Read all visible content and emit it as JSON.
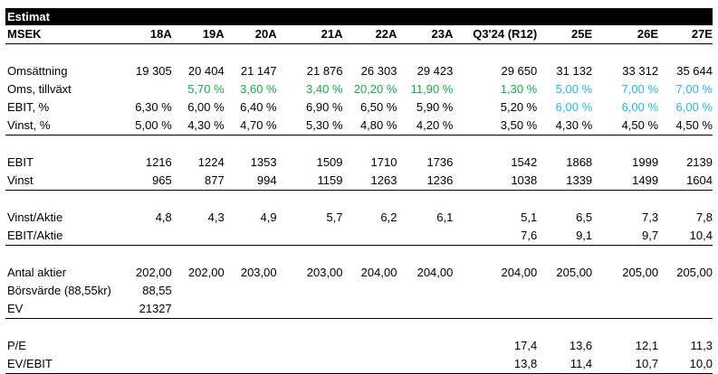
{
  "title": "Estimat",
  "header": {
    "label": "MSEK",
    "columns": [
      "18A",
      "19A",
      "20A",
      "21A",
      "22A",
      "23A",
      "Q3'24 (R12)",
      "25E",
      "26E",
      "27E"
    ]
  },
  "colors": {
    "actual_growth": "#1ba84a",
    "estimate": "#2ab3dd"
  },
  "sections": [
    {
      "rows": [
        {
          "label": "Omsättning",
          "values": [
            "19 305",
            "20 404",
            "21 147",
            "21 876",
            "26 303",
            "29 423",
            "29 650",
            "31 132",
            "33 312",
            "35 644"
          ],
          "colors": [
            "",
            "",
            "",
            "",
            "",
            "",
            "",
            "",
            "",
            ""
          ]
        },
        {
          "label": "Oms, tillväxt",
          "values": [
            "",
            "5,70 %",
            "3,60 %",
            "3,40 %",
            "20,20 %",
            "11,90 %",
            "1,30 %",
            "5,00 %",
            "7,00 %",
            "7,00 %"
          ],
          "colors": [
            "",
            "green",
            "green",
            "green",
            "green",
            "green",
            "green",
            "blue",
            "blue",
            "blue"
          ]
        },
        {
          "label": "EBIT, %",
          "values": [
            "6,30 %",
            "6,00 %",
            "6,40 %",
            "6,90 %",
            "6,50 %",
            "5,90 %",
            "5,20 %",
            "6,00 %",
            "6,00 %",
            "6,00 %"
          ],
          "colors": [
            "",
            "",
            "",
            "",
            "",
            "",
            "",
            "blue",
            "blue",
            "blue"
          ]
        },
        {
          "label": "Vinst, %",
          "values": [
            "5,00 %",
            "4,30 %",
            "4,70 %",
            "5,30 %",
            "4,80 %",
            "4,20 %",
            "3,50 %",
            "4,30 %",
            "4,50 %",
            "4,50 %"
          ],
          "colors": [
            "",
            "",
            "",
            "",
            "",
            "",
            "",
            "",
            "",
            ""
          ]
        }
      ]
    },
    {
      "rows": [
        {
          "label": "EBIT",
          "values": [
            "1216",
            "1224",
            "1353",
            "1509",
            "1710",
            "1736",
            "1542",
            "1868",
            "1999",
            "2139"
          ],
          "colors": [
            "",
            "",
            "",
            "",
            "",
            "",
            "",
            "",
            "",
            ""
          ]
        },
        {
          "label": "Vinst",
          "values": [
            "965",
            "877",
            "994",
            "1159",
            "1263",
            "1236",
            "1038",
            "1339",
            "1499",
            "1604"
          ],
          "colors": [
            "",
            "",
            "",
            "",
            "",
            "",
            "",
            "",
            "",
            ""
          ]
        }
      ]
    },
    {
      "rows": [
        {
          "label": "Vinst/Aktie",
          "values": [
            "4,8",
            "4,3",
            "4,9",
            "5,7",
            "6,2",
            "6,1",
            "5,1",
            "6,5",
            "7,3",
            "7,8"
          ],
          "colors": [
            "",
            "",
            "",
            "",
            "",
            "",
            "",
            "",
            "",
            ""
          ]
        },
        {
          "label": "EBIT/Aktie",
          "values": [
            "",
            "",
            "",
            "",
            "",
            "",
            "7,6",
            "9,1",
            "9,7",
            "10,4"
          ],
          "colors": [
            "",
            "",
            "",
            "",
            "",
            "",
            "",
            "",
            "",
            ""
          ]
        }
      ]
    },
    {
      "rows": [
        {
          "label": "Antal aktier",
          "values": [
            "202,00",
            "202,00",
            "203,00",
            "203,00",
            "204,00",
            "204,00",
            "204,00",
            "205,00",
            "205,00",
            "205,00"
          ],
          "colors": [
            "",
            "",
            "",
            "",
            "",
            "",
            "",
            "",
            "",
            ""
          ]
        },
        {
          "label": "Börsvärde (88,55kr)",
          "values": [
            "88,55",
            "",
            "",
            "",
            "",
            "",
            "",
            "",
            "",
            ""
          ],
          "colors": [
            "",
            "",
            "",
            "",
            "",
            "",
            "",
            "",
            "",
            ""
          ]
        },
        {
          "label": "EV",
          "values": [
            "21327",
            "",
            "",
            "",
            "",
            "",
            "",
            "",
            "",
            ""
          ],
          "colors": [
            "",
            "",
            "",
            "",
            "",
            "",
            "",
            "",
            "",
            ""
          ]
        }
      ]
    },
    {
      "rows": [
        {
          "label": "P/E",
          "values": [
            "",
            "",
            "",
            "",
            "",
            "",
            "17,4",
            "13,6",
            "12,1",
            "11,3"
          ],
          "colors": [
            "",
            "",
            "",
            "",
            "",
            "",
            "",
            "",
            "",
            ""
          ]
        },
        {
          "label": "EV/EBIT",
          "values": [
            "",
            "",
            "",
            "",
            "",
            "",
            "13,8",
            "11,4",
            "10,7",
            "10,0"
          ],
          "colors": [
            "",
            "",
            "",
            "",
            "",
            "",
            "",
            "",
            "",
            ""
          ]
        }
      ]
    }
  ]
}
